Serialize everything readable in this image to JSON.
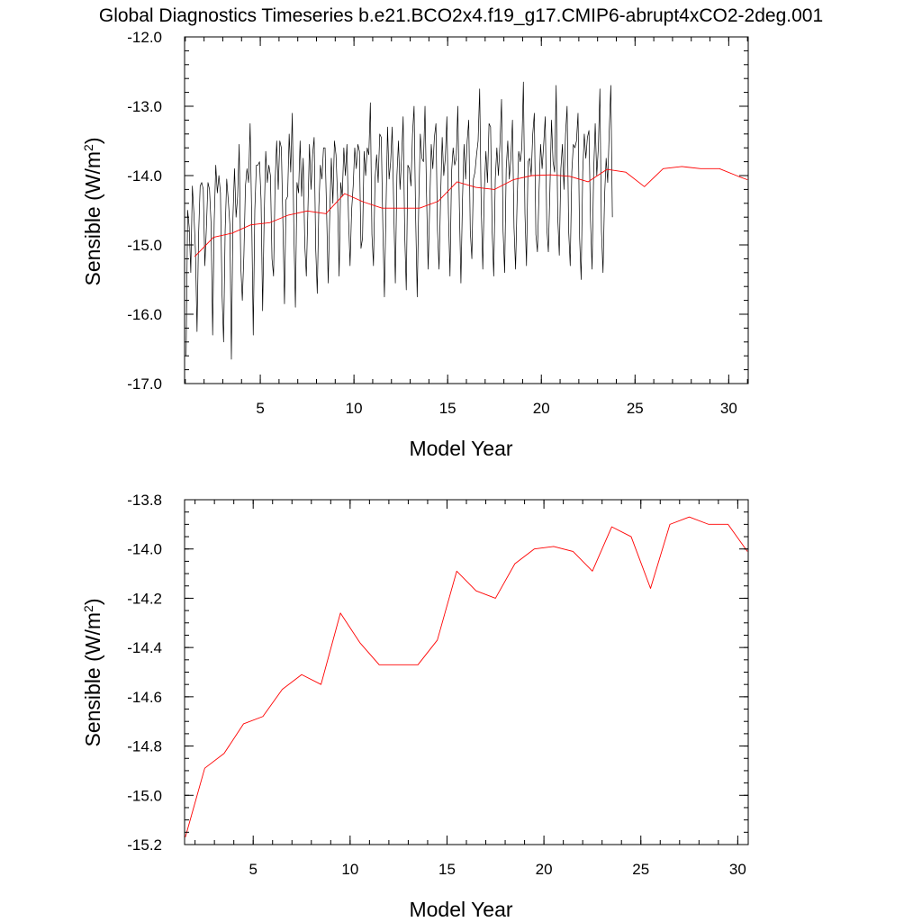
{
  "title": "Global Diagnostics Timeseries b.e21.BCO2x4.f19_g17.CMIP6-abrupt4xCO2-2deg.001",
  "colors": {
    "monthly": "#000000",
    "annual": "#ff0000"
  },
  "chart_data": [
    {
      "type": "line",
      "xlabel": "Model Year",
      "ylabel": "Sensible (W/m",
      "ylabel_sup": "2",
      "ylabel_end": ")",
      "xlim": [
        0.96,
        31.04
      ],
      "ylim": [
        -17.0,
        -12.0
      ],
      "xticks": [
        5,
        10,
        15,
        20,
        25,
        30
      ],
      "yticks": [
        -12.0,
        -13.0,
        -14.0,
        -15.0,
        -16.0,
        -17.0
      ],
      "xtick_labels": [
        "5",
        "10",
        "15",
        "20",
        "25",
        "30"
      ],
      "ytick_labels": [
        "-12.0",
        "-13.0",
        "-14.0",
        "-15.0",
        "-16.0",
        "-17.0"
      ],
      "x_minor_step": 1,
      "y_minor_step": 0.2,
      "series": [
        {
          "style": "monthly",
          "x_start": 1.0417,
          "x_step": 0.08333,
          "values": [
            -16.6,
            -14.5,
            -14.75,
            -15.4,
            -14.15,
            -14.55,
            -15.1,
            -16.25,
            -14.85,
            -14.15,
            -14.1,
            -14.2,
            -15.3,
            -14.75,
            -14.1,
            -14.2,
            -14.7,
            -16.3,
            -14.65,
            -13.85,
            -14.25,
            -14.0,
            -14.25,
            -15.7,
            -16.4,
            -14.8,
            -14.05,
            -14.35,
            -14.7,
            -16.65,
            -14.6,
            -13.9,
            -14.6,
            -14.3,
            -13.55,
            -15.3,
            -15.8,
            -15.15,
            -14.15,
            -13.9,
            -14.1,
            -13.25,
            -14.6,
            -16.3,
            -14.5,
            -13.85,
            -13.85,
            -13.8,
            -14.35,
            -15.95,
            -14.6,
            -13.65,
            -14.1,
            -13.85,
            -14.0,
            -15.2,
            -15.45,
            -14.1,
            -13.5,
            -14.2,
            -13.5,
            -13.6,
            -14.7,
            -15.85,
            -14.35,
            -14.3,
            -13.4,
            -13.95,
            -13.1,
            -14.8,
            -15.9,
            -14.1,
            -14.25,
            -13.5,
            -14.3,
            -13.75,
            -15.0,
            -15.45,
            -14.5,
            -13.55,
            -14.2,
            -13.7,
            -13.45,
            -15.05,
            -15.7,
            -14.45,
            -13.85,
            -14.05,
            -13.6,
            -13.6,
            -14.55,
            -15.55,
            -14.55,
            -13.75,
            -14.4,
            -13.5,
            -13.7,
            -14.3,
            -15.45,
            -14.1,
            -14.3,
            -13.6,
            -14.0,
            -13.55,
            -14.6,
            -15.3,
            -14.5,
            -14.15,
            -13.6,
            -13.9,
            -13.55,
            -13.65,
            -15.05,
            -14.9,
            -13.65,
            -14.0,
            -13.6,
            -13.7,
            -12.95,
            -14.85,
            -15.3,
            -14.05,
            -13.7,
            -14.1,
            -13.4,
            -13.45,
            -14.75,
            -15.75,
            -14.5,
            -13.3,
            -14.05,
            -13.8,
            -13.3,
            -14.5,
            -15.55,
            -14.0,
            -13.5,
            -14.2,
            -13.75,
            -13.15,
            -14.85,
            -15.65,
            -13.85,
            -13.9,
            -14.15,
            -13.4,
            -13.0,
            -14.6,
            -15.75,
            -14.4,
            -13.4,
            -13.75,
            -13.8,
            -13.0,
            -14.3,
            -15.35,
            -14.45,
            -13.55,
            -13.9,
            -13.45,
            -13.25,
            -14.8,
            -15.35,
            -14.3,
            -13.45,
            -14.0,
            -13.75,
            -13.15,
            -14.55,
            -15.45,
            -13.95,
            -13.6,
            -13.85,
            -13.75,
            -13.0,
            -14.45,
            -15.55,
            -14.35,
            -13.55,
            -14.05,
            -13.5,
            -13.2,
            -14.8,
            -15.2,
            -14.05,
            -13.95,
            -13.7,
            -13.5,
            -12.75,
            -14.45,
            -15.35,
            -14.2,
            -13.65,
            -14.1,
            -13.25,
            -13.3,
            -14.8,
            -15.45,
            -14.05,
            -13.6,
            -14.0,
            -13.55,
            -12.9,
            -14.8,
            -15.4,
            -13.9,
            -13.5,
            -14.05,
            -13.75,
            -13.2,
            -14.75,
            -15.35,
            -14.35,
            -13.65,
            -13.8,
            -13.6,
            -12.65,
            -14.55,
            -15.3,
            -13.8,
            -13.75,
            -14.0,
            -13.4,
            -13.1,
            -14.85,
            -15.1,
            -14.25,
            -13.55,
            -13.9,
            -13.55,
            -13.15,
            -14.75,
            -15.1,
            -14.2,
            -13.2,
            -13.8,
            -13.95,
            -12.7,
            -14.6,
            -15.15,
            -13.9,
            -13.55,
            -14.2,
            -13.4,
            -13.0,
            -14.8,
            -15.3,
            -13.95,
            -13.55,
            -13.6,
            -13.5,
            -13.1,
            -14.9,
            -15.5,
            -13.95,
            -13.4,
            -13.75,
            -13.45,
            -13.35,
            -14.65,
            -15.35,
            -13.95,
            -13.25,
            -14.0,
            -13.6,
            -12.75,
            -14.8,
            -15.4,
            -14.3,
            -13.75,
            -14.1,
            -13.35,
            -12.7,
            -14.6
          ]
        },
        {
          "style": "annual",
          "x": [
            1.5,
            2.5,
            3.5,
            4.5,
            5.5,
            6.5,
            7.5,
            8.5,
            9.5,
            10.5,
            11.5,
            12.5,
            13.5,
            14.5,
            15.5,
            16.5,
            17.5,
            18.5,
            19.5,
            20.5,
            21.5,
            22.5,
            23.5,
            24.5,
            25.5,
            26.5,
            27.5,
            28.5,
            29.5,
            30.5,
            31.0
          ],
          "values": [
            -15.17,
            -14.89,
            -14.83,
            -14.71,
            -14.68,
            -14.57,
            -14.51,
            -14.55,
            -14.26,
            -14.38,
            -14.47,
            -14.47,
            -14.47,
            -14.37,
            -14.09,
            -14.17,
            -14.2,
            -14.06,
            -14.0,
            -13.99,
            -14.01,
            -14.09,
            -13.91,
            -13.95,
            -14.16,
            -13.9,
            -13.87,
            -13.9,
            -13.9,
            -14.01,
            -14.06
          ]
        }
      ]
    },
    {
      "type": "line",
      "xlabel": "Model Year",
      "ylabel": "Sensible (W/m",
      "ylabel_sup": "2",
      "ylabel_end": ")",
      "xlim": [
        1.46,
        30.54
      ],
      "ylim": [
        -15.2,
        -13.8
      ],
      "xticks": [
        5,
        10,
        15,
        20,
        25,
        30
      ],
      "yticks": [
        -13.8,
        -14.0,
        -14.2,
        -14.4,
        -14.6,
        -14.8,
        -15.0,
        -15.2
      ],
      "xtick_labels": [
        "5",
        "10",
        "15",
        "20",
        "25",
        "30"
      ],
      "ytick_labels": [
        "-13.8",
        "-14.0",
        "-14.2",
        "-14.4",
        "-14.6",
        "-14.8",
        "-15.0",
        "-15.2"
      ],
      "x_minor_step": 1,
      "y_minor_step": 0.05,
      "series": [
        {
          "style": "annual",
          "x": [
            1.5,
            2.5,
            3.5,
            4.5,
            5.5,
            6.5,
            7.5,
            8.5,
            9.5,
            10.5,
            11.5,
            12.5,
            13.5,
            14.5,
            15.5,
            16.5,
            17.5,
            18.5,
            19.5,
            20.5,
            21.5,
            22.5,
            23.5,
            24.5,
            25.5,
            26.5,
            27.5,
            28.5,
            29.5,
            30.5
          ],
          "values": [
            -15.17,
            -14.89,
            -14.83,
            -14.71,
            -14.68,
            -14.57,
            -14.51,
            -14.55,
            -14.26,
            -14.38,
            -14.47,
            -14.47,
            -14.47,
            -14.37,
            -14.09,
            -14.17,
            -14.2,
            -14.06,
            -14.0,
            -13.99,
            -14.01,
            -14.09,
            -13.91,
            -13.95,
            -14.16,
            -13.9,
            -13.87,
            -13.9,
            -13.9,
            -14.01
          ]
        }
      ]
    }
  ]
}
